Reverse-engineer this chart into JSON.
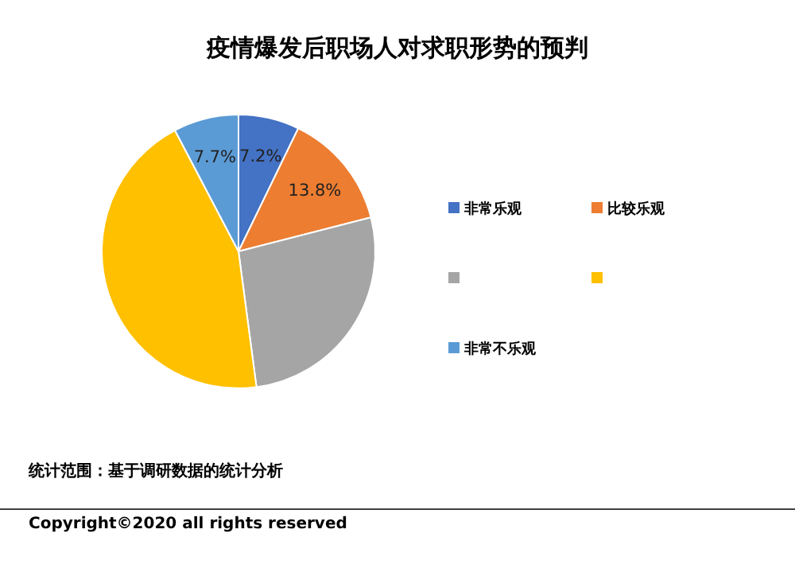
{
  "chart_data": {
    "type": "pie",
    "title": "疫情爆发后职场人对求职形势的预判",
    "categories": [
      "非常乐观",
      "比较乐观",
      null,
      null,
      "非常不乐观"
    ],
    "values": [
      7.2,
      13.8,
      26.9,
      44.4,
      7.7
    ],
    "colors": [
      "#4472c4",
      "#ed7d31",
      "#a5a5a5",
      "#ffc000",
      "#5b9bd5"
    ],
    "value_labels": [
      "7.2%",
      "13.8%",
      null,
      null,
      "7.7%"
    ],
    "legend": "right",
    "annotations": [
      "统计范围：基于调研数据的统计分析",
      "Copyright©2020 all rights reserved"
    ]
  }
}
